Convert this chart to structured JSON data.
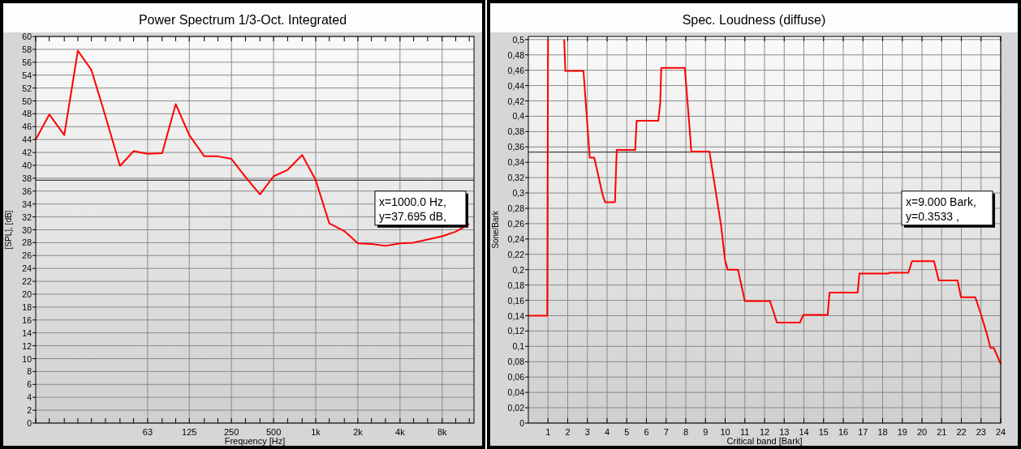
{
  "chart_data": [
    {
      "type": "line",
      "title": "Power Spectrum 1/3-Oct. Integrated",
      "xlabel": "Frequency [Hz]",
      "ylabel": "[SPL], [dB]",
      "log": "x",
      "grid": true,
      "marker": "none",
      "line_style": "solid",
      "xlim": [
        10,
        13500
      ],
      "ylim": [
        0,
        60
      ],
      "xticks": [
        {
          "value": 10,
          "label": null
        },
        {
          "value": 12.5,
          "label": null
        },
        {
          "value": 16,
          "label": null
        },
        {
          "value": 20,
          "label": null
        },
        {
          "value": 25,
          "label": null
        },
        {
          "value": 31.5,
          "label": null
        },
        {
          "value": 40,
          "label": null
        },
        {
          "value": 50,
          "label": null
        },
        63,
        {
          "value": 80,
          "label": null
        },
        {
          "value": 100,
          "label": null
        },
        125,
        {
          "value": 160,
          "label": null
        },
        {
          "value": 200,
          "label": null
        },
        250,
        {
          "value": 315,
          "label": null
        },
        {
          "value": 400,
          "label": null
        },
        500,
        {
          "value": 630,
          "label": null
        },
        {
          "value": 800,
          "label": null
        },
        {
          "value": 1000,
          "label": "1k"
        },
        {
          "value": 1250,
          "label": null
        },
        {
          "value": 1600,
          "label": null
        },
        {
          "value": 2000,
          "label": "2k"
        },
        {
          "value": 2500,
          "label": null
        },
        {
          "value": 3150,
          "label": null
        },
        {
          "value": 4000,
          "label": "4k"
        },
        {
          "value": 5000,
          "label": null
        },
        {
          "value": 6300,
          "label": null
        },
        {
          "value": 8000,
          "label": "8k"
        },
        {
          "value": 10000,
          "label": null
        },
        {
          "value": 12500,
          "label": null
        }
      ],
      "yticks": [
        0,
        2,
        4,
        6,
        8,
        10,
        12,
        14,
        16,
        18,
        20,
        22,
        24,
        26,
        28,
        30,
        32,
        34,
        36,
        38,
        40,
        42,
        44,
        46,
        48,
        50,
        52,
        54,
        56,
        58,
        60
      ],
      "ref_lines": [
        {
          "axis": "y",
          "value": 37.695,
          "color": "#404040"
        }
      ],
      "annotations": [
        "x=1000.0 Hz,\ny=37.695 dB,"
      ],
      "x": [
        10,
        12.5,
        16,
        20,
        25,
        31.5,
        40,
        50,
        63,
        80,
        100,
        125,
        160,
        200,
        250,
        315,
        400,
        500,
        630,
        800,
        1000,
        1250,
        1600,
        2000,
        2500,
        3150,
        4000,
        5000,
        6300,
        8000,
        10000,
        12500
      ],
      "series": [
        {
          "color": "#ff0000",
          "values": [
            44.0,
            47.9,
            44.7,
            57.8,
            54.8,
            47.6,
            39.9,
            42.2,
            41.8,
            41.9,
            49.5,
            44.7,
            41.4,
            41.4,
            41.0,
            38.2,
            35.5,
            38.3,
            39.3,
            41.6,
            37.7,
            31.0,
            29.8,
            27.9,
            27.8,
            27.5,
            27.9,
            28.0,
            28.5,
            29.0,
            29.7,
            30.9
          ]
        }
      ]
    },
    {
      "type": "line",
      "title": "Spec. Loudness (diffuse)",
      "xlabel": "Critical band [Bark]",
      "ylabel": "Sone/Bark",
      "grid": true,
      "marker": "none",
      "line_style": "solid",
      "xlim": [
        0,
        24
      ],
      "ylim": [
        0,
        0.504
      ],
      "xticks": [
        1,
        2,
        3,
        4,
        5,
        6,
        7,
        8,
        9,
        10,
        11,
        12,
        13,
        14,
        15,
        16,
        17,
        18,
        19,
        20,
        21,
        22,
        23,
        24
      ],
      "yticks": [
        0,
        {
          "value": 0.02,
          "label": "0,02"
        },
        {
          "value": 0.04,
          "label": "0,04"
        },
        {
          "value": 0.06,
          "label": "0,06"
        },
        {
          "value": 0.08,
          "label": "0,08"
        },
        {
          "value": 0.1,
          "label": "0,1"
        },
        {
          "value": 0.12,
          "label": "0,12"
        },
        {
          "value": 0.14,
          "label": "0,14"
        },
        {
          "value": 0.16,
          "label": "0,16"
        },
        {
          "value": 0.18,
          "label": "0,18"
        },
        {
          "value": 0.2,
          "label": "0,2"
        },
        {
          "value": 0.22,
          "label": "0,22"
        },
        {
          "value": 0.24,
          "label": "0,24"
        },
        {
          "value": 0.26,
          "label": "0,26"
        },
        {
          "value": 0.28,
          "label": "0,28"
        },
        {
          "value": 0.3,
          "label": "0,3"
        },
        {
          "value": 0.32,
          "label": "0,32"
        },
        {
          "value": 0.34,
          "label": "0,34"
        },
        {
          "value": 0.36,
          "label": "0,36"
        },
        {
          "value": 0.38,
          "label": "0,38"
        },
        {
          "value": 0.4,
          "label": "0,4"
        },
        {
          "value": 0.42,
          "label": "0,42"
        },
        {
          "value": 0.44,
          "label": "0,44"
        },
        {
          "value": 0.46,
          "label": "0,46"
        },
        {
          "value": 0.48,
          "label": "0,48"
        },
        {
          "value": 0.5,
          "label": "0,5"
        }
      ],
      "ref_lines": [
        {
          "axis": "y",
          "value": 0.3533,
          "color": "#404040"
        }
      ],
      "annotations": [
        "x=9.000 Bark,\ny=0.3533 ,"
      ],
      "x": [
        0,
        0.96,
        1.0,
        1.4,
        1.82,
        1.88,
        2.8,
        3.12,
        3.35,
        3.77,
        3.9,
        4.4,
        4.49,
        5.43,
        5.5,
        6.6,
        6.7,
        6.75,
        7.95,
        8.2,
        8.28,
        9.2,
        9.79,
        9.99,
        10.13,
        10.65,
        11.0,
        12.28,
        12.63,
        13.8,
        13.97,
        15.21,
        15.3,
        16.73,
        16.82,
        18.3,
        18.35,
        19.31,
        19.49,
        20.61,
        20.85,
        21.81,
        21.98,
        22.71,
        22.97,
        23.31,
        23.48,
        23.65,
        24
      ],
      "series": [
        {
          "color": "#ff0000",
          "values": [
            0.14,
            0.14,
            0.5,
            null,
            0.5,
            0.459,
            0.459,
            0.346,
            0.346,
            0.298,
            0.288,
            0.288,
            0.356,
            0.356,
            0.394,
            0.394,
            0.417,
            0.463,
            0.463,
            0.382,
            0.354,
            0.354,
            0.258,
            0.213,
            0.2,
            0.2,
            0.159,
            0.159,
            0.131,
            0.131,
            0.141,
            0.141,
            0.17,
            0.17,
            0.195,
            0.195,
            0.196,
            0.196,
            0.211,
            0.211,
            0.186,
            0.186,
            0.164,
            0.164,
            0.144,
            0.115,
            0.098,
            0.098,
            0.077
          ]
        }
      ]
    }
  ]
}
